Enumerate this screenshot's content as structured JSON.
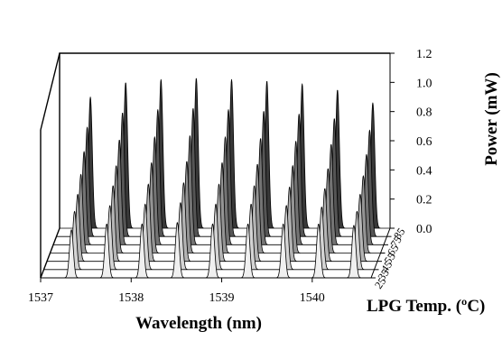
{
  "chart_data": {
    "type": "line",
    "subtype": "3d-waterfall",
    "title": "",
    "xlabel": "Wavelength (nm)",
    "ylabel": "Power (mW)",
    "zlabel": "LPG Temp. (ºC)",
    "x_ticks": [
      "1537",
      "1538",
      "1539",
      "1540"
    ],
    "y_ticks": [
      "0.0",
      "0.2",
      "0.4",
      "0.6",
      "0.8",
      "1.0",
      "1.2"
    ],
    "z_ticks": [
      "25",
      "35",
      "45",
      "55",
      "65",
      "75",
      "85"
    ],
    "xlim": [
      1537.0,
      1540.65
    ],
    "ylim": [
      0.0,
      1.2
    ],
    "temperatures": [
      25,
      35,
      45,
      55,
      65,
      75,
      85
    ],
    "peak_wavelengths": [
      1537.34,
      1537.73,
      1538.12,
      1538.51,
      1538.9,
      1539.29,
      1539.68,
      1540.07,
      1540.46
    ],
    "peak_width_fwhm_nm": 0.05,
    "series": [
      {
        "name": "25",
        "color": "#f0f0f0",
        "peak_power": [
          0.33,
          0.37,
          0.37,
          0.38,
          0.37,
          0.37,
          0.37,
          0.37,
          0.36
        ]
      },
      {
        "name": "35",
        "color": "#d4d4d4",
        "peak_power": [
          0.4,
          0.44,
          0.45,
          0.46,
          0.45,
          0.45,
          0.44,
          0.43,
          0.4
        ]
      },
      {
        "name": "45",
        "color": "#b4b4b4",
        "peak_power": [
          0.46,
          0.52,
          0.53,
          0.54,
          0.53,
          0.52,
          0.51,
          0.5,
          0.46
        ]
      },
      {
        "name": "55",
        "color": "#949494",
        "peak_power": [
          0.54,
          0.6,
          0.62,
          0.63,
          0.62,
          0.61,
          0.6,
          0.58,
          0.53
        ]
      },
      {
        "name": "65",
        "color": "#747474",
        "peak_power": [
          0.64,
          0.72,
          0.74,
          0.75,
          0.74,
          0.73,
          0.71,
          0.69,
          0.62
        ]
      },
      {
        "name": "75",
        "color": "#555555",
        "peak_power": [
          0.75,
          0.85,
          0.87,
          0.88,
          0.87,
          0.86,
          0.84,
          0.81,
          0.73
        ]
      },
      {
        "name": "85",
        "color": "#383838",
        "peak_power": [
          0.9,
          1.0,
          1.02,
          1.03,
          1.02,
          1.01,
          0.99,
          0.95,
          0.86
        ]
      }
    ],
    "grid": false,
    "legend": "none"
  }
}
